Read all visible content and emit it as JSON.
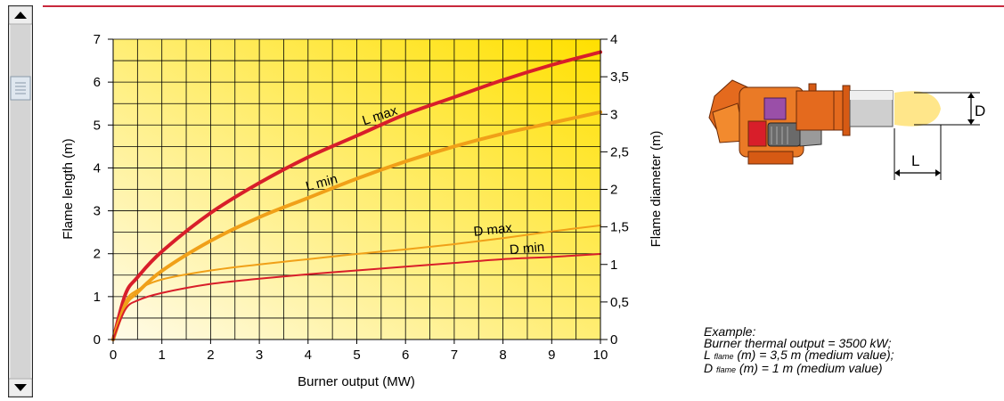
{
  "chart_data": {
    "type": "line",
    "xlabel": "Burner output (MW)",
    "ylabel": "Flame length (m)",
    "y2label": "Flame diameter (m)",
    "xlim": [
      0,
      10
    ],
    "ylim": [
      0,
      7
    ],
    "y2lim": [
      0,
      4
    ],
    "x_ticks": [
      "0",
      "1",
      "2",
      "3",
      "4",
      "5",
      "6",
      "7",
      "8",
      "9",
      "10"
    ],
    "y_ticks": [
      "0",
      "1",
      "2",
      "3",
      "4",
      "5",
      "6",
      "7"
    ],
    "y2_ticks": [
      "0",
      "0,5",
      "1",
      "1,5",
      "2",
      "2,5",
      "3",
      "3,5",
      "4"
    ],
    "grid": true,
    "colors": {
      "red": "#d81e2a",
      "orange": "#f0a018",
      "bg_light": "#fffbe8",
      "bg_dark": "#ffe000"
    },
    "series": [
      {
        "name": "L max",
        "axis": "left",
        "color": "#d81e2a",
        "x": [
          0,
          0.25,
          0.5,
          1,
          2,
          3,
          4,
          5,
          6,
          7,
          8,
          9,
          10
        ],
        "y": [
          0,
          1.05,
          1.45,
          2.05,
          2.95,
          3.65,
          4.25,
          4.75,
          5.25,
          5.65,
          6.05,
          6.4,
          6.7
        ]
      },
      {
        "name": "L min",
        "axis": "left",
        "color": "#f0a018",
        "x": [
          0,
          0.25,
          0.5,
          1,
          2,
          3,
          4,
          5,
          6,
          7,
          8,
          9,
          10
        ],
        "y": [
          0,
          0.8,
          1.1,
          1.6,
          2.3,
          2.85,
          3.3,
          3.75,
          4.15,
          4.5,
          4.8,
          5.05,
          5.3
        ]
      },
      {
        "name": "D max",
        "axis": "right",
        "color": "#f0a018",
        "x": [
          0,
          0.25,
          0.5,
          1,
          2,
          3,
          4,
          5,
          6,
          7,
          8,
          9,
          10
        ],
        "y": [
          0,
          0.5,
          0.66,
          0.8,
          0.92,
          1.0,
          1.07,
          1.14,
          1.2,
          1.27,
          1.35,
          1.44,
          1.52
        ]
      },
      {
        "name": "D min",
        "axis": "right",
        "color": "#d81e2a",
        "x": [
          0,
          0.25,
          0.5,
          1,
          2,
          3,
          4,
          5,
          6,
          7,
          8,
          9,
          10
        ],
        "y": [
          0,
          0.4,
          0.52,
          0.62,
          0.74,
          0.81,
          0.87,
          0.92,
          0.97,
          1.02,
          1.07,
          1.1,
          1.14
        ]
      }
    ]
  },
  "diagram": {
    "d_label": "D",
    "l_label": "L"
  },
  "example": {
    "title": "Example:",
    "line1": "Burner thermal output = 3500 kW;",
    "line2_prefix": "L",
    "line2_sub": "flame",
    "line2_suffix": "(m) = 3,5 m (medium value);",
    "line3_prefix": "D",
    "line3_sub": "flame",
    "line3_suffix": "(m) = 1 m (medium value)"
  }
}
